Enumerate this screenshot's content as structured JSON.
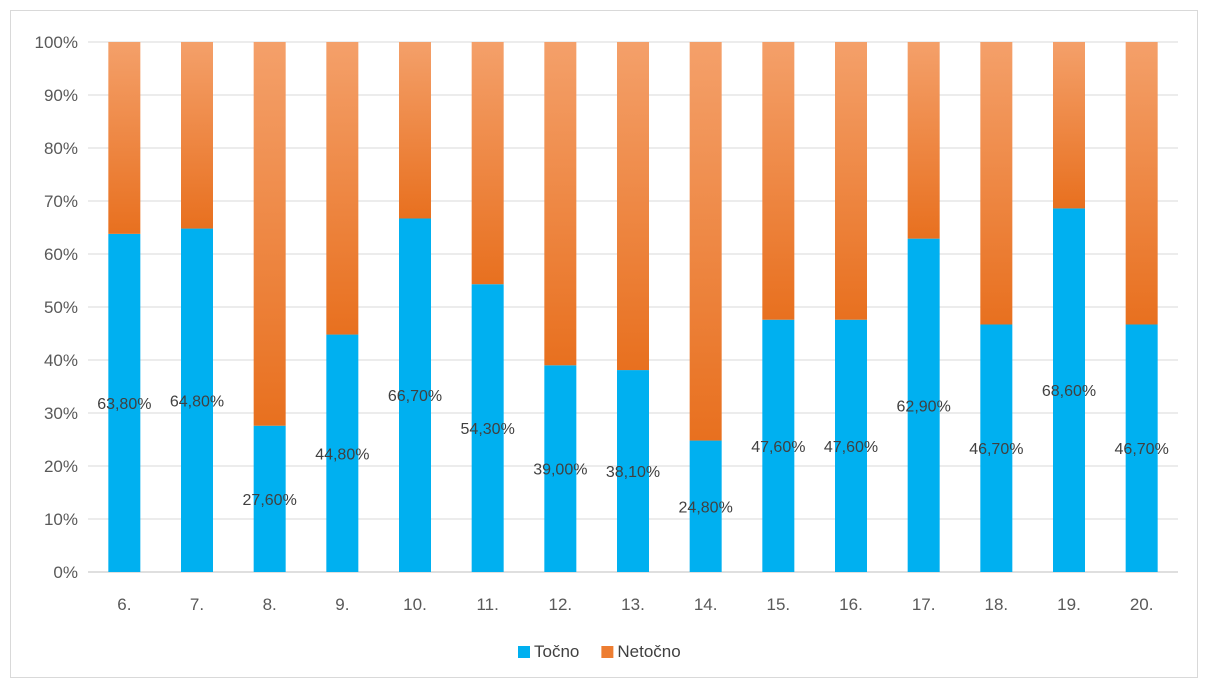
{
  "chart_data": {
    "type": "bar",
    "stacked": true,
    "percent_stacked": true,
    "categories": [
      "6.",
      "7.",
      "8.",
      "9.",
      "10.",
      "11.",
      "12.",
      "13.",
      "14.",
      "15.",
      "16.",
      "17.",
      "18.",
      "19.",
      "20."
    ],
    "series": [
      {
        "name": "Točno",
        "color": "#00b0f0",
        "values": [
          63.8,
          64.8,
          27.6,
          44.8,
          66.7,
          54.3,
          39.0,
          38.1,
          24.8,
          47.6,
          47.6,
          62.9,
          46.7,
          68.6,
          46.7
        ],
        "data_labels": [
          "63,80%",
          "64,80%",
          "27,60%",
          "44,80%",
          "66,70%",
          "54,30%",
          "39,00%",
          "38,10%",
          "24,80%",
          "47,60%",
          "47,60%",
          "62,90%",
          "46,70%",
          "68,60%",
          "46,70%"
        ]
      },
      {
        "name": "Netočno",
        "color": "#ed7d31",
        "values": [
          36.2,
          35.2,
          72.4,
          55.2,
          33.3,
          45.7,
          61.0,
          61.9,
          75.2,
          52.4,
          52.4,
          37.1,
          53.3,
          31.4,
          53.3
        ]
      }
    ],
    "y_ticks": [
      "0%",
      "10%",
      "20%",
      "30%",
      "40%",
      "50%",
      "60%",
      "70%",
      "80%",
      "90%",
      "100%"
    ],
    "ylim": [
      0,
      100
    ],
    "grid": true,
    "legend_position": "bottom",
    "title": "",
    "xlabel": "",
    "ylabel": ""
  }
}
